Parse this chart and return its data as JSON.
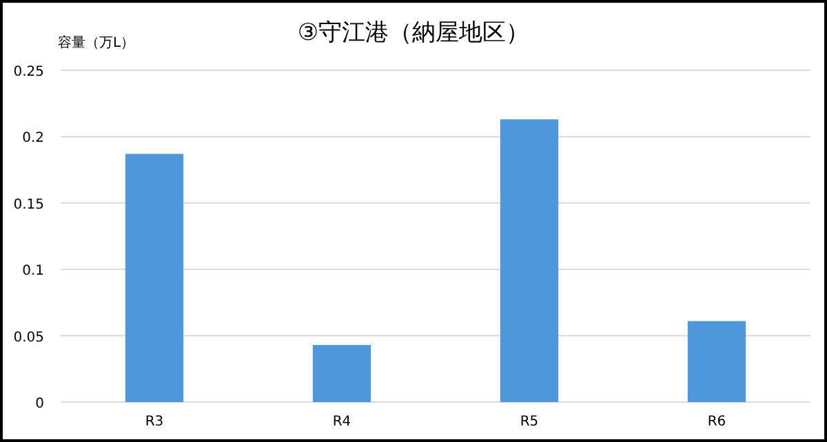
{
  "chart_data": {
    "type": "bar",
    "title": "③守江港（納屋地区）",
    "ylabel": "容量（万L）",
    "categories": [
      "R3",
      "R4",
      "R5",
      "R6"
    ],
    "values": [
      0.187,
      0.043,
      0.213,
      0.061
    ],
    "color": "#4f97db",
    "ylim": [
      0,
      0.25
    ],
    "yticks": [
      0,
      0.05,
      0.1,
      0.15,
      0.2,
      0.25
    ],
    "grid": "y"
  }
}
